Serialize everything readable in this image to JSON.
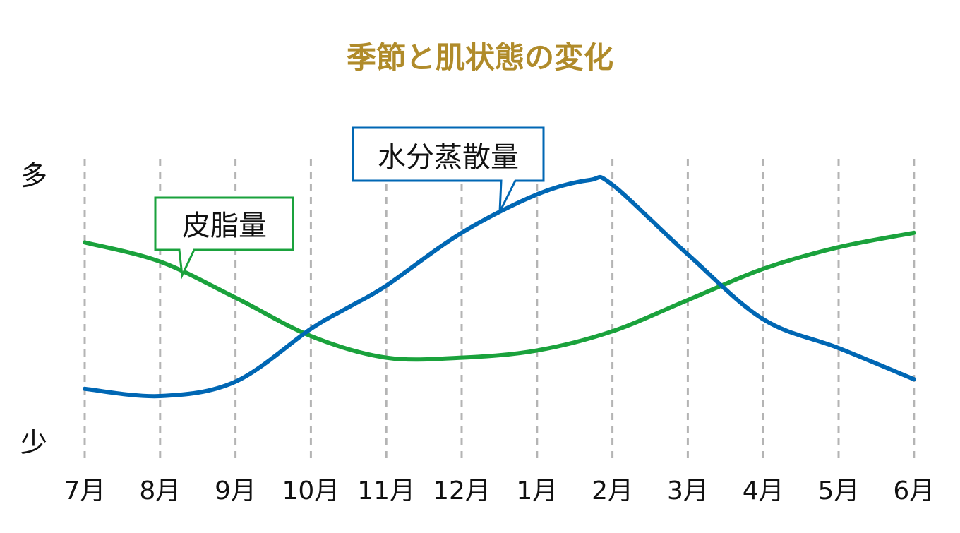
{
  "chart_data": {
    "type": "line",
    "title": "季節と肌状態の変化",
    "y_top_label": "多",
    "y_bottom_label": "少",
    "categories": [
      "7月",
      "8月",
      "9月",
      "10月",
      "11月",
      "12月",
      "1月",
      "2月",
      "3月",
      "4月",
      "5月",
      "6月"
    ],
    "ylim": [
      0,
      100
    ],
    "grid": "vertical-dashed",
    "series": [
      {
        "name": "皮脂量",
        "color": "#1aa23c",
        "x": [
          0,
          1,
          2,
          3,
          4,
          5,
          6,
          7,
          8,
          9,
          10,
          11
        ],
        "y": [
          74,
          66,
          51,
          35,
          26,
          26,
          29,
          37,
          50,
          63,
          72,
          78
        ]
      },
      {
        "name": "水分蒸散量",
        "color": "#0067b4",
        "x": [
          0,
          1,
          2,
          3,
          3.5,
          4,
          5,
          6,
          6.7,
          7,
          8,
          9,
          10,
          11
        ],
        "y": [
          13,
          10,
          16,
          38,
          47,
          56,
          78,
          94,
          100,
          98,
          69,
          42,
          30,
          17
        ]
      }
    ]
  },
  "colors": {
    "title": "#b08b2a",
    "grid": "#b4b4b4"
  }
}
